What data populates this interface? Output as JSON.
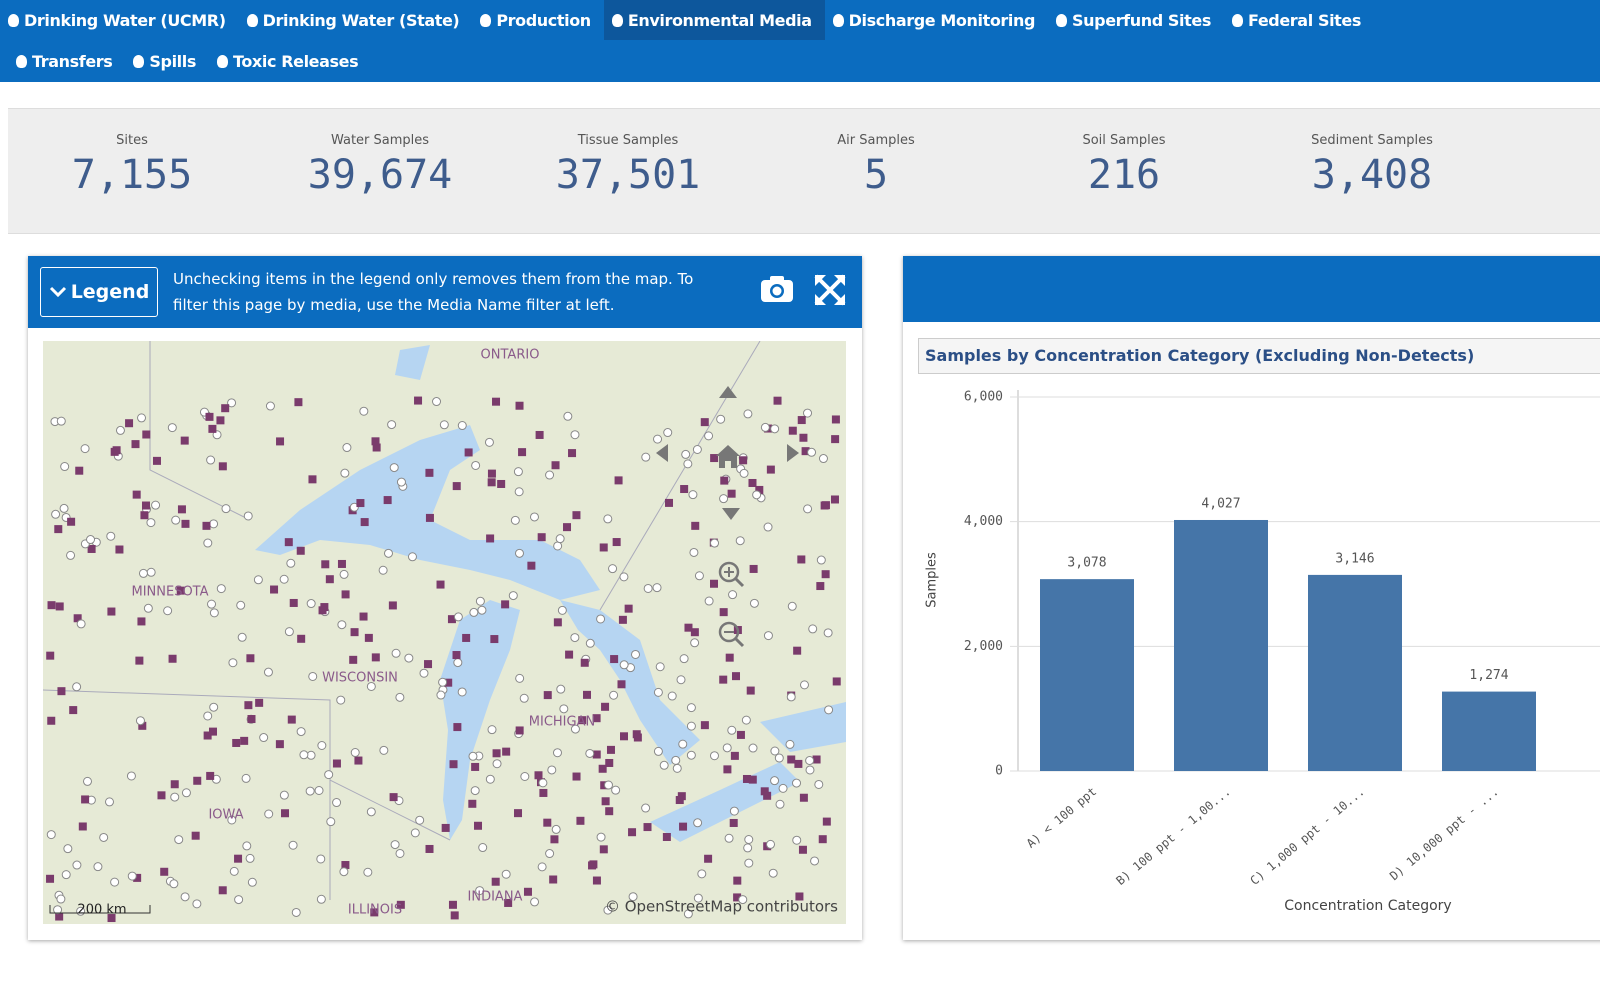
{
  "nav": {
    "row1": [
      "Drinking Water (UCMR)",
      "Drinking Water (State)",
      "Production",
      "Environmental Media",
      "Discharge Monitoring",
      "Superfund Sites",
      "Federal Sites"
    ],
    "row2": [
      "Transfers",
      "Spills",
      "Toxic Releases"
    ],
    "active": "Environmental Media"
  },
  "kpis": [
    {
      "label": "Sites",
      "value": "7,155"
    },
    {
      "label": "Water Samples",
      "value": "39,674"
    },
    {
      "label": "Tissue Samples",
      "value": "37,501"
    },
    {
      "label": "Air Samples",
      "value": "5"
    },
    {
      "label": "Soil Samples",
      "value": "216"
    },
    {
      "label": "Sediment Samples",
      "value": "3,408"
    }
  ],
  "map_panel": {
    "legend_button": "Legend",
    "info": "Unchecking items in the legend only removes them from the map. To filter this page by media, use the Media Name filter at left.",
    "places": [
      "ONTARIO",
      "MINNESOTA",
      "WISCONSIN",
      "MICHIGAN",
      "IOWA",
      "ILLINOIS",
      "INDIANA"
    ],
    "scale": "200 km",
    "attribution": "© OpenStreetMap contributors"
  },
  "chart_data": {
    "type": "bar",
    "title": "Samples by Concentration Category (Excluding Non-Detects)",
    "x_label": "Concentration Category",
    "y_label": "Samples",
    "categories": [
      "A) < 100 ppt",
      "B) 100 ppt - 1,00...",
      "C) 1,000 ppt - 10...",
      "D) 10,000 ppt - ..."
    ],
    "values": [
      3078,
      4027,
      3146,
      1274
    ],
    "value_labels": [
      "3,078",
      "4,027",
      "3,146",
      "1,274"
    ],
    "color": "#4575a8",
    "ylim": [
      0,
      6000
    ],
    "yticks": [
      0,
      {
        "value": 2000,
        "label": "2,000"
      },
      {
        "value": 4000,
        "label": "4,000"
      },
      {
        "value": 6000,
        "label": "6,000"
      }
    ],
    "grid": true
  }
}
